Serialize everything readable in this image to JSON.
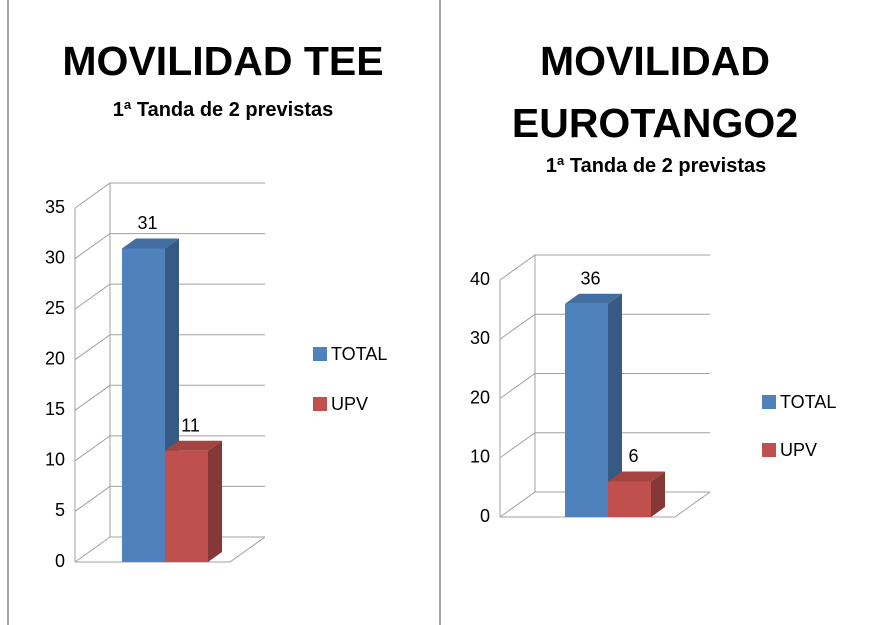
{
  "chart_data": [
    {
      "type": "bar3d",
      "title": "MOVILIDAD TEE",
      "subtitle": "1ª Tanda de 2 previstas",
      "categories": [
        null
      ],
      "series": [
        {
          "name": "TOTAL",
          "color": "#4f81bd",
          "values": [
            31
          ]
        },
        {
          "name": "UPV",
          "color": "#c0504d",
          "values": [
            11
          ]
        }
      ],
      "ylim": [
        0,
        35
      ],
      "yticks": [
        0,
        5,
        10,
        15,
        20,
        25,
        30,
        35
      ],
      "grid": true,
      "legend": "right"
    },
    {
      "type": "bar3d",
      "title": "MOVILIDAD EUROTANGO2",
      "subtitle": "1ª Tanda de 2 previstas",
      "categories": [
        null
      ],
      "series": [
        {
          "name": "TOTAL",
          "color": "#4f81bd",
          "values": [
            36
          ]
        },
        {
          "name": "UPV",
          "color": "#c0504d",
          "values": [
            6
          ]
        }
      ],
      "ylim": [
        0,
        40
      ],
      "yticks": [
        0,
        10,
        20,
        30,
        40
      ],
      "grid": true,
      "legend": "right"
    }
  ]
}
